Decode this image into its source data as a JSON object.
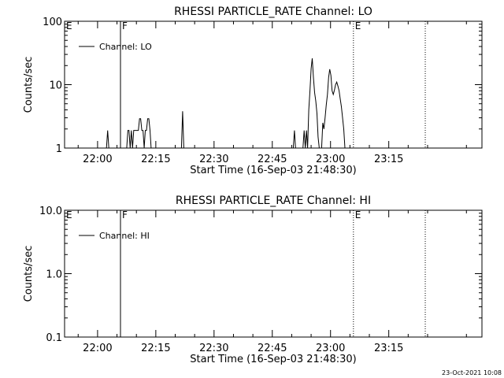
{
  "footer_timestamp": "23-Oct-2021 10:08",
  "chart_data": [
    {
      "type": "line",
      "title": "RHESSI PARTICLE_RATE Channel: LO",
      "xlabel": "Start Time (16-Sep-03 21:48:30)",
      "ylabel": "Counts/sec",
      "yscale": "log",
      "ylim": [
        1,
        100
      ],
      "yticks": [
        {
          "v": 1,
          "label": "1"
        },
        {
          "v": 10,
          "label": "10"
        },
        {
          "v": 100,
          "label": "100"
        }
      ],
      "xlim_minutes": [
        -8.5,
        99
      ],
      "xticks": [
        {
          "v": 0,
          "label": "22:00"
        },
        {
          "v": 15,
          "label": "22:15"
        },
        {
          "v": 30,
          "label": "22:30"
        },
        {
          "v": 45,
          "label": "22:45"
        },
        {
          "v": 60,
          "label": "23:00"
        },
        {
          "v": 75,
          "label": "23:15"
        }
      ],
      "legend": {
        "label": "Channel: LO",
        "position": "top-left"
      },
      "markers": [
        {
          "x": 5.9,
          "label": "F",
          "style": "solid"
        },
        {
          "x": 65.9,
          "label": "E",
          "style": "dotted"
        }
      ],
      "edge_label_left": "E",
      "end_marker": {
        "x": 84.4,
        "style": "dotted"
      },
      "series": [
        {
          "x": [
            2.3,
            2.6,
            2.9,
            7.5,
            7.8,
            8.1,
            8.4,
            8.7,
            9.0,
            9.3,
            9.6,
            9.9,
            10.2,
            10.5,
            10.8,
            11.1,
            11.4,
            11.7,
            12.0,
            12.3,
            12.6,
            12.9,
            13.2,
            13.5,
            13.8,
            14.1,
            14.4,
            14.7,
            15.0,
            15.3,
            15.6,
            15.9,
            21.6,
            21.9,
            22.2,
            50.4,
            50.7,
            51.0,
            51.3,
            51.6,
            52.9,
            53.2,
            53.5,
            53.8,
            54.1,
            54.4,
            54.7,
            55.0,
            55.3,
            55.6,
            55.9,
            56.2,
            56.5,
            56.8,
            57.1,
            57.4,
            57.7,
            58.0,
            58.3,
            58.6,
            58.9,
            59.2,
            59.5,
            59.8,
            60.1,
            60.4,
            60.7,
            61.0,
            61.3,
            61.6,
            61.9,
            62.2,
            62.5,
            62.8,
            63.1,
            63.4,
            63.7
          ],
          "y": [
            1,
            1.9,
            1,
            1,
            1.9,
            1.9,
            1,
            1.9,
            1,
            1.9,
            1.9,
            1.9,
            1.9,
            1.9,
            2.9,
            2.9,
            1.9,
            1.9,
            1,
            1.9,
            1.9,
            2.9,
            2.9,
            1.9,
            1,
            1,
            1,
            1,
            1,
            1,
            1,
            1,
            1,
            3.8,
            1,
            1,
            1.9,
            1,
            1,
            1,
            1,
            1.9,
            1,
            1.9,
            1,
            4,
            8,
            18,
            26,
            13,
            7.5,
            5.5,
            3.5,
            1.5,
            1,
            1,
            1,
            2.5,
            2,
            3,
            4.8,
            7,
            13,
            17.5,
            14,
            8,
            7,
            8.2,
            10,
            11,
            9.5,
            8,
            6,
            4.5,
            3,
            2,
            1
          ]
        }
      ]
    },
    {
      "type": "line",
      "title": "RHESSI PARTICLE_RATE Channel: HI",
      "xlabel": "Start Time (16-Sep-03 21:48:30)",
      "ylabel": "Counts/sec",
      "yscale": "log",
      "ylim": [
        0.1,
        10
      ],
      "yticks": [
        {
          "v": 0.1,
          "label": "0.1"
        },
        {
          "v": 1,
          "label": "1.0"
        },
        {
          "v": 10,
          "label": "10.0"
        }
      ],
      "xlim_minutes": [
        -8.5,
        99
      ],
      "xticks": [
        {
          "v": 0,
          "label": "22:00"
        },
        {
          "v": 15,
          "label": "22:15"
        },
        {
          "v": 30,
          "label": "22:30"
        },
        {
          "v": 45,
          "label": "22:45"
        },
        {
          "v": 60,
          "label": "23:00"
        },
        {
          "v": 75,
          "label": "23:15"
        }
      ],
      "legend": {
        "label": "Channel: HI",
        "position": "top-left"
      },
      "markers": [
        {
          "x": 5.9,
          "label": "F",
          "style": "solid"
        },
        {
          "x": 65.9,
          "label": "E",
          "style": "dotted"
        }
      ],
      "edge_label_left": "E",
      "end_marker": {
        "x": 84.4,
        "style": "dotted"
      },
      "series": [
        {
          "x": [],
          "y": []
        }
      ]
    }
  ]
}
